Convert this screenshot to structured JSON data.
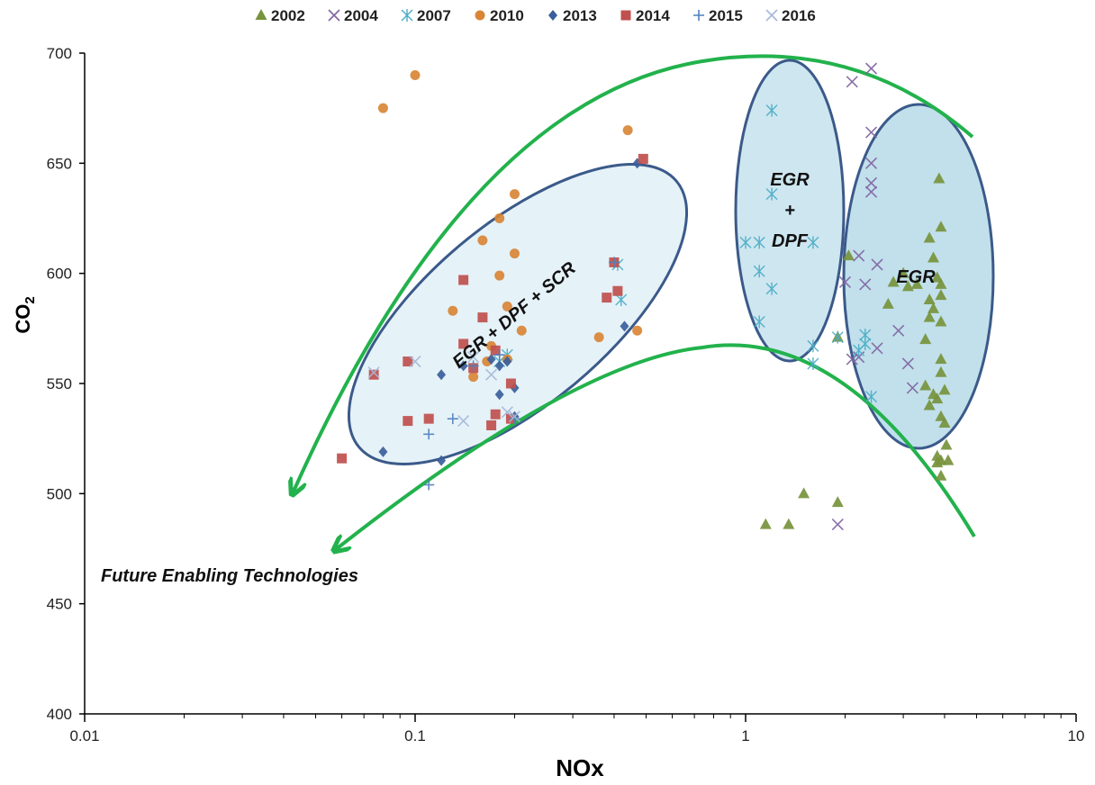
{
  "chart_data": {
    "type": "scatter",
    "xlabel": "NOx",
    "ylabel": "CO",
    "ylabel_sub": "2",
    "x_scale": "log",
    "xlim": [
      0.01,
      10
    ],
    "ylim": [
      400,
      700
    ],
    "x_ticks": [
      "0.01",
      "0.1",
      "1",
      "10"
    ],
    "y_ticks": [
      "400",
      "450",
      "500",
      "550",
      "600",
      "650",
      "700"
    ],
    "grid": false,
    "legend_position": "top",
    "series": [
      {
        "name": "2002",
        "marker": "triangle",
        "color": "#77933c",
        "points": [
          [
            1.15,
            486
          ],
          [
            1.35,
            486
          ],
          [
            1.5,
            500
          ],
          [
            1.9,
            496
          ],
          [
            1.9,
            571
          ],
          [
            2.05,
            608
          ],
          [
            2.7,
            586
          ],
          [
            2.8,
            596
          ],
          [
            3.0,
            600
          ],
          [
            3.1,
            594
          ],
          [
            3.3,
            595
          ],
          [
            3.5,
            570
          ],
          [
            3.5,
            549
          ],
          [
            3.6,
            616
          ],
          [
            3.6,
            588
          ],
          [
            3.6,
            580
          ],
          [
            3.6,
            540
          ],
          [
            3.7,
            607
          ],
          [
            3.7,
            584
          ],
          [
            3.7,
            545
          ],
          [
            3.8,
            598
          ],
          [
            3.8,
            543
          ],
          [
            3.8,
            517
          ],
          [
            3.8,
            514
          ],
          [
            3.85,
            643
          ],
          [
            3.9,
            621
          ],
          [
            3.9,
            595
          ],
          [
            3.9,
            590
          ],
          [
            3.9,
            578
          ],
          [
            3.9,
            561
          ],
          [
            3.9,
            555
          ],
          [
            3.9,
            535
          ],
          [
            3.9,
            515
          ],
          [
            3.9,
            508
          ],
          [
            4.0,
            532
          ],
          [
            4.0,
            547
          ],
          [
            4.05,
            522
          ],
          [
            4.1,
            515
          ]
        ]
      },
      {
        "name": "2004",
        "marker": "x",
        "color": "#8064a2",
        "points": [
          [
            1.9,
            486
          ],
          [
            2.0,
            596
          ],
          [
            2.1,
            687
          ],
          [
            2.1,
            561
          ],
          [
            2.2,
            608
          ],
          [
            2.2,
            562
          ],
          [
            2.3,
            595
          ],
          [
            2.4,
            693
          ],
          [
            2.4,
            664
          ],
          [
            2.4,
            650
          ],
          [
            2.4,
            641
          ],
          [
            2.4,
            637
          ],
          [
            2.5,
            604
          ],
          [
            2.5,
            566
          ],
          [
            2.9,
            574
          ],
          [
            3.1,
            559
          ],
          [
            3.2,
            548
          ]
        ]
      },
      {
        "name": "2007",
        "marker": "asterisk",
        "color": "#4bacc6",
        "points": [
          [
            1.0,
            614
          ],
          [
            1.1,
            614
          ],
          [
            1.1,
            601
          ],
          [
            1.1,
            578
          ],
          [
            1.2,
            674
          ],
          [
            1.2,
            636
          ],
          [
            1.2,
            593
          ],
          [
            1.6,
            614
          ],
          [
            1.6,
            567
          ],
          [
            1.6,
            559
          ],
          [
            1.9,
            571
          ],
          [
            2.2,
            565
          ],
          [
            2.3,
            572
          ],
          [
            2.3,
            568
          ],
          [
            2.4,
            544
          ],
          [
            0.18,
            560
          ],
          [
            0.19,
            563
          ],
          [
            0.42,
            588
          ],
          [
            0.41,
            604
          ]
        ]
      },
      {
        "name": "2010",
        "marker": "circle",
        "color": "#d98536",
        "points": [
          [
            0.08,
            675
          ],
          [
            0.1,
            690
          ],
          [
            0.16,
            615
          ],
          [
            0.18,
            625
          ],
          [
            0.2,
            636
          ],
          [
            0.36,
            571
          ],
          [
            0.44,
            665
          ],
          [
            0.47,
            574
          ],
          [
            0.13,
            583
          ],
          [
            0.15,
            553
          ],
          [
            0.17,
            567
          ],
          [
            0.18,
            599
          ],
          [
            0.19,
            585
          ],
          [
            0.19,
            561
          ],
          [
            0.2,
            609
          ],
          [
            0.21,
            574
          ],
          [
            0.165,
            560
          ]
        ]
      },
      {
        "name": "2013",
        "marker": "diamond",
        "color": "#3a5f9a",
        "points": [
          [
            0.08,
            519
          ],
          [
            0.12,
            515
          ],
          [
            0.12,
            554
          ],
          [
            0.14,
            558
          ],
          [
            0.17,
            561
          ],
          [
            0.18,
            545
          ],
          [
            0.18,
            558
          ],
          [
            0.19,
            560
          ],
          [
            0.2,
            548
          ],
          [
            0.43,
            576
          ],
          [
            0.47,
            650
          ],
          [
            0.2,
            535
          ]
        ]
      },
      {
        "name": "2014",
        "marker": "square",
        "color": "#c0504d",
        "points": [
          [
            0.06,
            516
          ],
          [
            0.075,
            554
          ],
          [
            0.095,
            533
          ],
          [
            0.095,
            560
          ],
          [
            0.11,
            534
          ],
          [
            0.14,
            597
          ],
          [
            0.14,
            568
          ],
          [
            0.15,
            557
          ],
          [
            0.16,
            580
          ],
          [
            0.17,
            531
          ],
          [
            0.175,
            565
          ],
          [
            0.175,
            536
          ],
          [
            0.195,
            550
          ],
          [
            0.195,
            534
          ],
          [
            0.38,
            589
          ],
          [
            0.4,
            605
          ],
          [
            0.41,
            592
          ],
          [
            0.49,
            652
          ]
        ]
      },
      {
        "name": "2015",
        "marker": "plus",
        "color": "#4f81bd",
        "points": [
          [
            0.11,
            504
          ],
          [
            0.11,
            527
          ],
          [
            0.13,
            534
          ],
          [
            0.15,
            558
          ],
          [
            0.18,
            563
          ],
          [
            0.2,
            534
          ],
          [
            0.4,
            605
          ]
        ]
      },
      {
        "name": "2016",
        "marker": "x",
        "color": "#a5b8d8",
        "points": [
          [
            0.14,
            533
          ],
          [
            0.15,
            562
          ],
          [
            0.17,
            554
          ],
          [
            0.19,
            537
          ],
          [
            0.2,
            535
          ],
          [
            0.075,
            555
          ],
          [
            0.1,
            560
          ]
        ]
      }
    ],
    "regions": [
      {
        "label_lines": [
          "EGR + DPF + SCR"
        ],
        "label_rotation": -40
      },
      {
        "label_lines": [
          "EGR",
          "+",
          "DPF"
        ]
      },
      {
        "label_lines": [
          "EGR"
        ]
      }
    ],
    "annotation": "Future Enabling Technologies",
    "colors": {
      "axis": "#000000",
      "region_stroke": "#3b5a8a",
      "arrow": "#22b24c",
      "region1_fill": "#dcedf5",
      "region2_fill": "#b9dce9",
      "region3_fill": "#a6d3e2"
    }
  }
}
